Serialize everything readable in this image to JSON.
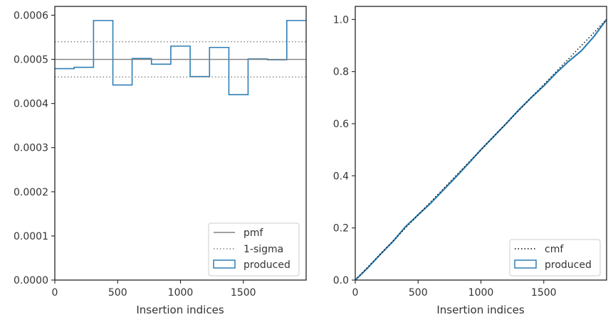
{
  "chart_data": [
    {
      "type": "step-histogram",
      "xlabel": "Insertion indices",
      "ylabel": "",
      "xlim": [
        0,
        2000
      ],
      "ylim": [
        0,
        0.00062
      ],
      "xticks": [
        0,
        500,
        1000,
        1500
      ],
      "xtick_labels": [
        "0",
        "500",
        "1000",
        "1500"
      ],
      "yticks": [
        0,
        0.0001,
        0.0002,
        0.0003,
        0.0004,
        0.0005,
        0.0006
      ],
      "ytick_labels": [
        "0.0000",
        "0.0001",
        "0.0002",
        "0.0003",
        "0.0004",
        "0.0005",
        "0.0006"
      ],
      "grid": false,
      "legend_position": "lower-right",
      "pmf": 0.0005,
      "sigma_band": [
        0.00046,
        0.00054
      ],
      "bin_edges": [
        0,
        154,
        308,
        462,
        615,
        769,
        923,
        1077,
        1231,
        1385,
        1538,
        1692,
        1846,
        2000
      ],
      "produced": [
        0.000479,
        0.000482,
        0.000588,
        0.000442,
        0.000502,
        0.000489,
        0.00053,
        0.000461,
        0.000527,
        0.00042,
        0.000501,
        0.000499,
        0.000588
      ],
      "series": [
        {
          "name": "pmf",
          "style": "solid",
          "color": "#808080"
        },
        {
          "name": "1-sigma",
          "style": "dotted",
          "color": "#808080"
        },
        {
          "name": "produced",
          "style": "step",
          "color": "#2f7fb5"
        }
      ]
    },
    {
      "type": "line",
      "xlabel": "Insertion indices",
      "ylabel": "",
      "xlim": [
        0,
        2000
      ],
      "ylim": [
        0,
        1.05
      ],
      "xticks": [
        0,
        500,
        1000,
        1500
      ],
      "xtick_labels": [
        "0",
        "500",
        "1000",
        "1500"
      ],
      "yticks": [
        0,
        0.2,
        0.4,
        0.6,
        0.8,
        1.0
      ],
      "ytick_labels": [
        "0.0",
        "0.2",
        "0.4",
        "0.6",
        "0.8",
        "1.0"
      ],
      "grid": false,
      "legend_position": "lower-right",
      "cmf": {
        "x": [
          0,
          2000
        ],
        "y": [
          0,
          1.0
        ]
      },
      "produced": {
        "x": [
          0,
          100,
          200,
          300,
          400,
          500,
          600,
          700,
          800,
          900,
          1000,
          1100,
          1200,
          1300,
          1400,
          1500,
          1600,
          1700,
          1800,
          1900,
          2000
        ],
        "y": [
          0,
          0.047,
          0.099,
          0.148,
          0.205,
          0.25,
          0.295,
          0.345,
          0.395,
          0.447,
          0.5,
          0.55,
          0.6,
          0.652,
          0.7,
          0.745,
          0.795,
          0.84,
          0.88,
          0.935,
          1.0
        ]
      },
      "series": [
        {
          "name": "cmf",
          "style": "dotted",
          "color": "#000000"
        },
        {
          "name": "produced",
          "style": "line",
          "color": "#2f7fb5"
        }
      ]
    }
  ]
}
